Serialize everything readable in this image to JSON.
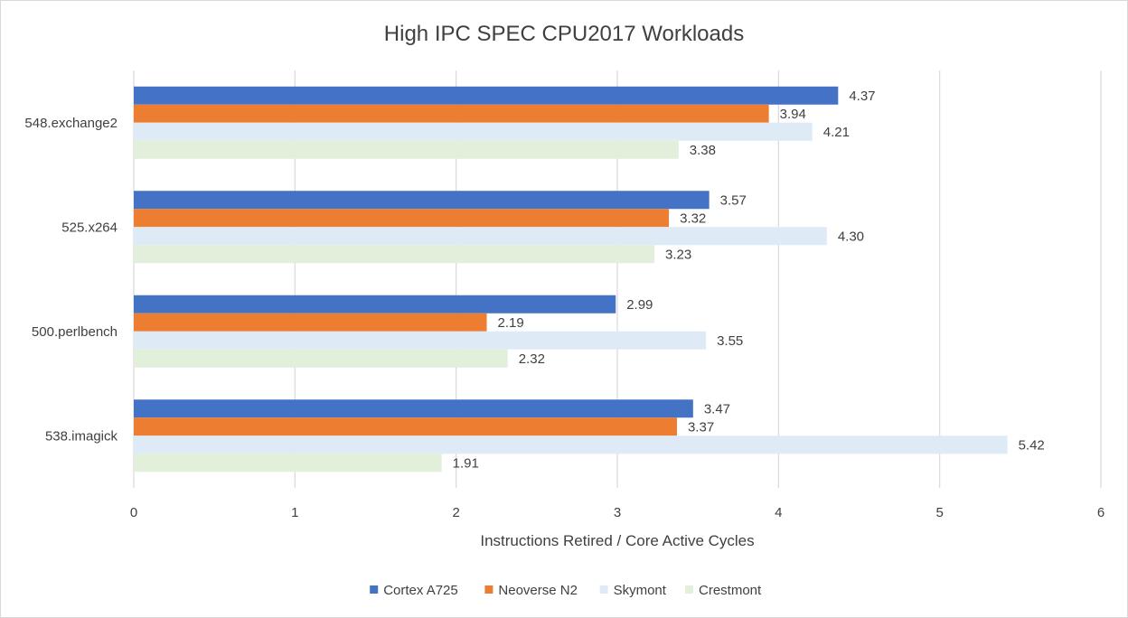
{
  "chart_data": {
    "type": "bar",
    "orientation": "horizontal",
    "title": "High IPC SPEC CPU2017 Workloads",
    "xlabel": "Instructions Retired / Core Active Cycles",
    "ylabel": "",
    "xlim": [
      0,
      6
    ],
    "xticks": [
      "0",
      "1",
      "2",
      "3",
      "4",
      "5",
      "6"
    ],
    "grid": true,
    "legend": "bottom",
    "categories": [
      "548.exchange2",
      "525.x264",
      "500.perlbench",
      "538.imagick"
    ],
    "series": [
      {
        "name": "Cortex A725",
        "color": "#4472c4",
        "values": [
          4.37,
          3.57,
          2.99,
          3.47
        ],
        "labels": [
          "4.37",
          "3.57",
          "2.99",
          "3.47"
        ]
      },
      {
        "name": "Neoverse N2",
        "color": "#ed7d31",
        "values": [
          3.94,
          3.32,
          2.19,
          3.37
        ],
        "labels": [
          "3.94",
          "3.32",
          "2.19",
          "3.37"
        ]
      },
      {
        "name": "Skymont",
        "color": "#deebf7",
        "values": [
          4.21,
          4.3,
          3.55,
          5.42
        ],
        "labels": [
          "4.21",
          "4.30",
          "3.55",
          "5.42"
        ]
      },
      {
        "name": "Crestmont",
        "color": "#e2efda",
        "values": [
          3.38,
          3.23,
          2.32,
          1.91
        ],
        "labels": [
          "3.38",
          "3.23",
          "2.32",
          "1.91"
        ]
      }
    ]
  }
}
